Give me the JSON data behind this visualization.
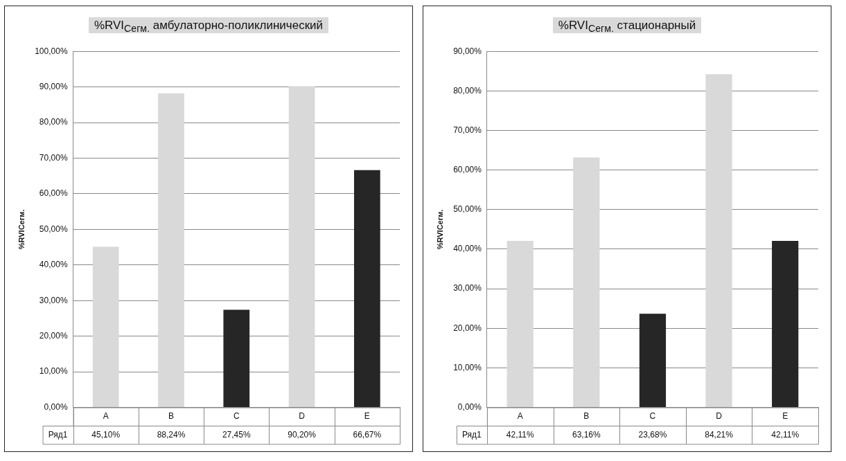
{
  "chart_data": [
    {
      "type": "bar",
      "title": "%RVI$_{Сегм.}$ амбулаторно-поликлинический",
      "ylabel": "%RVIСегм.",
      "categories": [
        "A",
        "B",
        "C",
        "D",
        "E"
      ],
      "grid": "y",
      "series": [
        {
          "name": "Ряд1",
          "colors": [
            "#d9d9d9",
            "#d9d9d9",
            "#262626",
            "#d9d9d9",
            "#262626"
          ],
          "values": [
            45.1,
            88.24,
            27.45,
            90.2,
            66.67
          ],
          "value_labels": [
            "45,10%",
            "88,24%",
            "27,45%",
            "90,20%",
            "66,67%"
          ]
        }
      ],
      "ylim": [
        0,
        100
      ],
      "yticks": [
        {
          "value": 0,
          "label": "0,00%"
        },
        {
          "value": 10,
          "label": "10,00%"
        },
        {
          "value": 20,
          "label": "20,00%"
        },
        {
          "value": 30,
          "label": "30,00%"
        },
        {
          "value": 40,
          "label": "40,00%"
        },
        {
          "value": 50,
          "label": "50,00%"
        },
        {
          "value": 60,
          "label": "60,00%"
        },
        {
          "value": 70,
          "label": "70,00%"
        },
        {
          "value": 80,
          "label": "80,00%"
        },
        {
          "value": 90,
          "label": "90,00%"
        },
        {
          "value": 100,
          "label": "100,00%"
        }
      ]
    },
    {
      "type": "bar",
      "title": "%RVI$_{Сегм.}$ стационарный",
      "ylabel": "%RVIСегм.",
      "categories": [
        "A",
        "B",
        "C",
        "D",
        "E"
      ],
      "grid": "y",
      "series": [
        {
          "name": "Ряд1",
          "colors": [
            "#d9d9d9",
            "#d9d9d9",
            "#262626",
            "#d9d9d9",
            "#262626"
          ],
          "values": [
            42.11,
            63.16,
            23.68,
            84.21,
            42.11
          ],
          "value_labels": [
            "42,11%",
            "63,16%",
            "23,68%",
            "84,21%",
            "42,11%"
          ]
        }
      ],
      "ylim": [
        0,
        90
      ],
      "yticks": [
        {
          "value": 0,
          "label": "0,00%"
        },
        {
          "value": 10,
          "label": "10,00%"
        },
        {
          "value": 20,
          "label": "20,00%"
        },
        {
          "value": 30,
          "label": "30,00%"
        },
        {
          "value": 40,
          "label": "40,00%"
        },
        {
          "value": 50,
          "label": "50,00%"
        },
        {
          "value": 60,
          "label": "60,00%"
        },
        {
          "value": 70,
          "label": "70,00%"
        },
        {
          "value": 80,
          "label": "80,00%"
        },
        {
          "value": 90,
          "label": "90,00%"
        }
      ]
    }
  ]
}
